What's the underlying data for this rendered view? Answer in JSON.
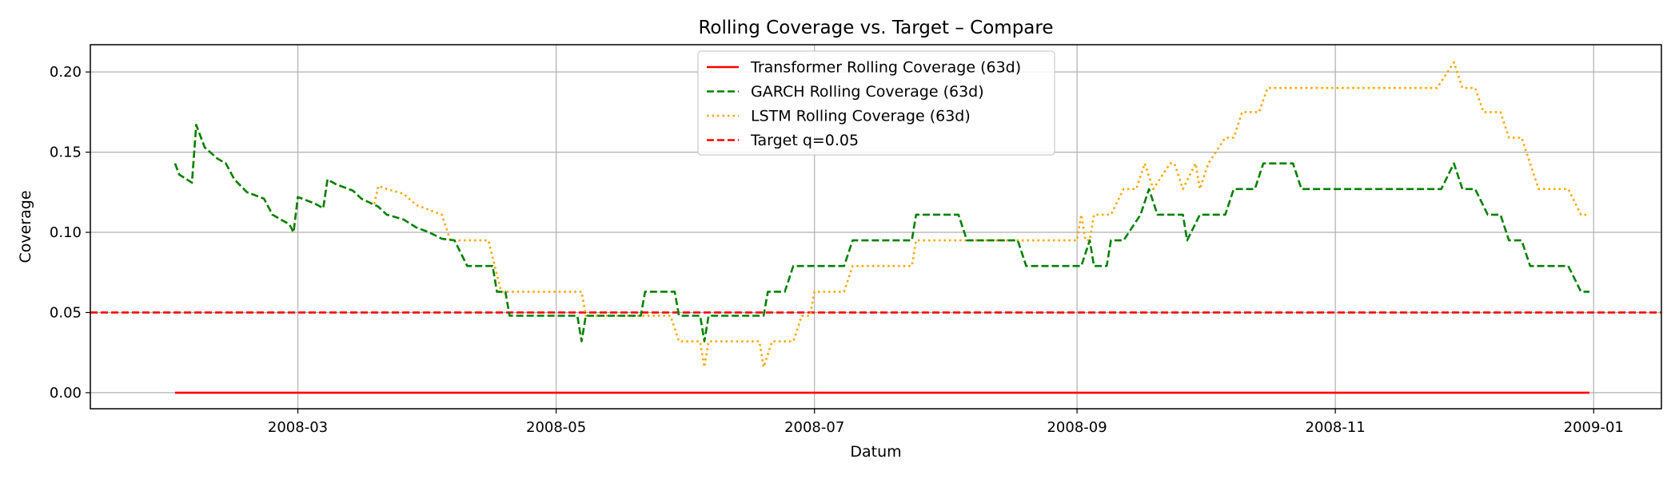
{
  "chart_data": {
    "type": "line",
    "title": "Rolling Coverage vs. Target – Compare",
    "xlabel": "Datum",
    "ylabel": "Coverage",
    "grid": true,
    "legend_position": "top-center",
    "x_ticks": [
      "2008-03",
      "2008-05",
      "2008-07",
      "2008-09",
      "2008-11",
      "2009-01"
    ],
    "y_ticks": [
      "0.00",
      "0.05",
      "0.10",
      "0.15",
      "0.20"
    ],
    "xlim": [
      "2008-01-12",
      "2009-01-17"
    ],
    "ylim": [
      -0.01,
      0.217
    ],
    "series": [
      {
        "name": "Transformer Rolling Coverage (63d)",
        "color": "#ff0000",
        "style": "solid",
        "points": [
          [
            "2008-02-01",
            0.0
          ],
          [
            "2008-12-31",
            0.0
          ]
        ]
      },
      {
        "name": "GARCH Rolling Coverage (63d)",
        "color": "#008000",
        "style": "dashed",
        "points": [
          [
            "2008-02-01",
            0.143
          ],
          [
            "2008-02-02",
            0.136
          ],
          [
            "2008-02-05",
            0.131
          ],
          [
            "2008-02-06",
            0.167
          ],
          [
            "2008-02-08",
            0.153
          ],
          [
            "2008-02-11",
            0.146
          ],
          [
            "2008-02-13",
            0.143
          ],
          [
            "2008-02-15",
            0.133
          ],
          [
            "2008-02-18",
            0.125
          ],
          [
            "2008-02-22",
            0.121
          ],
          [
            "2008-02-24",
            0.111
          ],
          [
            "2008-02-28",
            0.105
          ],
          [
            "2008-02-29",
            0.1
          ],
          [
            "2008-03-01",
            0.122
          ],
          [
            "2008-03-05",
            0.118
          ],
          [
            "2008-03-07",
            0.115
          ],
          [
            "2008-03-08",
            0.133
          ],
          [
            "2008-03-10",
            0.13
          ],
          [
            "2008-03-14",
            0.126
          ],
          [
            "2008-03-16",
            0.121
          ],
          [
            "2008-03-20",
            0.116
          ],
          [
            "2008-03-22",
            0.111
          ],
          [
            "2008-03-26",
            0.108
          ],
          [
            "2008-03-29",
            0.103
          ],
          [
            "2008-04-01",
            0.1
          ],
          [
            "2008-04-04",
            0.096
          ],
          [
            "2008-04-07",
            0.095
          ],
          [
            "2008-04-10",
            0.079
          ],
          [
            "2008-04-16",
            0.079
          ],
          [
            "2008-04-17",
            0.063
          ],
          [
            "2008-04-19",
            0.063
          ],
          [
            "2008-04-20",
            0.048
          ],
          [
            "2008-05-06",
            0.048
          ],
          [
            "2008-05-07",
            0.032
          ],
          [
            "2008-05-08",
            0.048
          ],
          [
            "2008-05-21",
            0.048
          ],
          [
            "2008-05-22",
            0.063
          ],
          [
            "2008-05-29",
            0.063
          ],
          [
            "2008-05-30",
            0.048
          ],
          [
            "2008-06-04",
            0.048
          ],
          [
            "2008-06-05",
            0.032
          ],
          [
            "2008-06-06",
            0.048
          ],
          [
            "2008-06-19",
            0.048
          ],
          [
            "2008-06-20",
            0.063
          ],
          [
            "2008-06-24",
            0.063
          ],
          [
            "2008-06-26",
            0.079
          ],
          [
            "2008-07-08",
            0.079
          ],
          [
            "2008-07-10",
            0.095
          ],
          [
            "2008-07-24",
            0.095
          ],
          [
            "2008-07-25",
            0.111
          ],
          [
            "2008-08-04",
            0.111
          ],
          [
            "2008-08-06",
            0.095
          ],
          [
            "2008-08-18",
            0.095
          ],
          [
            "2008-08-20",
            0.079
          ],
          [
            "2008-09-02",
            0.079
          ],
          [
            "2008-09-04",
            0.095
          ],
          [
            "2008-09-05",
            0.079
          ],
          [
            "2008-09-08",
            0.079
          ],
          [
            "2008-09-09",
            0.095
          ],
          [
            "2008-09-12",
            0.095
          ],
          [
            "2008-09-16",
            0.111
          ],
          [
            "2008-09-18",
            0.127
          ],
          [
            "2008-09-20",
            0.111
          ],
          [
            "2008-09-26",
            0.111
          ],
          [
            "2008-09-27",
            0.095
          ],
          [
            "2008-09-30",
            0.111
          ],
          [
            "2008-10-06",
            0.111
          ],
          [
            "2008-10-08",
            0.127
          ],
          [
            "2008-10-13",
            0.127
          ],
          [
            "2008-10-15",
            0.143
          ],
          [
            "2008-10-22",
            0.143
          ],
          [
            "2008-10-24",
            0.127
          ],
          [
            "2008-11-26",
            0.127
          ],
          [
            "2008-11-29",
            0.143
          ],
          [
            "2008-12-01",
            0.127
          ],
          [
            "2008-12-04",
            0.127
          ],
          [
            "2008-12-07",
            0.111
          ],
          [
            "2008-12-10",
            0.111
          ],
          [
            "2008-12-12",
            0.095
          ],
          [
            "2008-12-15",
            0.095
          ],
          [
            "2008-12-17",
            0.079
          ],
          [
            "2008-12-26",
            0.079
          ],
          [
            "2008-12-29",
            0.063
          ],
          [
            "2008-12-31",
            0.063
          ]
        ]
      },
      {
        "name": "LSTM Rolling Coverage (63d)",
        "color": "#ffa500",
        "style": "dotted",
        "points": [
          [
            "2008-02-01",
            0.143
          ],
          [
            "2008-02-02",
            0.136
          ],
          [
            "2008-02-05",
            0.131
          ],
          [
            "2008-02-06",
            0.167
          ],
          [
            "2008-02-08",
            0.153
          ],
          [
            "2008-02-11",
            0.146
          ],
          [
            "2008-02-13",
            0.143
          ],
          [
            "2008-02-15",
            0.133
          ],
          [
            "2008-02-18",
            0.125
          ],
          [
            "2008-02-22",
            0.121
          ],
          [
            "2008-02-24",
            0.111
          ],
          [
            "2008-02-28",
            0.105
          ],
          [
            "2008-02-29",
            0.1
          ],
          [
            "2008-03-01",
            0.122
          ],
          [
            "2008-03-05",
            0.118
          ],
          [
            "2008-03-07",
            0.115
          ],
          [
            "2008-03-08",
            0.133
          ],
          [
            "2008-03-10",
            0.13
          ],
          [
            "2008-03-14",
            0.126
          ],
          [
            "2008-03-16",
            0.121
          ],
          [
            "2008-03-19",
            0.117
          ],
          [
            "2008-03-20",
            0.129
          ],
          [
            "2008-03-22",
            0.127
          ],
          [
            "2008-03-26",
            0.124
          ],
          [
            "2008-03-29",
            0.117
          ],
          [
            "2008-04-01",
            0.114
          ],
          [
            "2008-04-04",
            0.111
          ],
          [
            "2008-04-06",
            0.095
          ],
          [
            "2008-04-15",
            0.095
          ],
          [
            "2008-04-18",
            0.063
          ],
          [
            "2008-05-07",
            0.063
          ],
          [
            "2008-05-08",
            0.048
          ],
          [
            "2008-05-28",
            0.048
          ],
          [
            "2008-05-30",
            0.032
          ],
          [
            "2008-06-04",
            0.032
          ],
          [
            "2008-06-05",
            0.016
          ],
          [
            "2008-06-06",
            0.032
          ],
          [
            "2008-06-18",
            0.032
          ],
          [
            "2008-06-19",
            0.016
          ],
          [
            "2008-06-21",
            0.032
          ],
          [
            "2008-06-26",
            0.032
          ],
          [
            "2008-06-28",
            0.048
          ],
          [
            "2008-06-30",
            0.048
          ],
          [
            "2008-07-01",
            0.063
          ],
          [
            "2008-07-08",
            0.063
          ],
          [
            "2008-07-10",
            0.079
          ],
          [
            "2008-07-24",
            0.079
          ],
          [
            "2008-07-25",
            0.095
          ],
          [
            "2008-09-01",
            0.095
          ],
          [
            "2008-09-02",
            0.111
          ],
          [
            "2008-09-03",
            0.095
          ],
          [
            "2008-09-04",
            0.095
          ],
          [
            "2008-09-05",
            0.111
          ],
          [
            "2008-09-09",
            0.111
          ],
          [
            "2008-09-12",
            0.127
          ],
          [
            "2008-09-15",
            0.127
          ],
          [
            "2008-09-17",
            0.143
          ],
          [
            "2008-09-19",
            0.127
          ],
          [
            "2008-09-23",
            0.143
          ],
          [
            "2008-09-24",
            0.143
          ],
          [
            "2008-09-26",
            0.127
          ],
          [
            "2008-09-29",
            0.143
          ],
          [
            "2008-09-30",
            0.127
          ],
          [
            "2008-10-02",
            0.143
          ],
          [
            "2008-10-06",
            0.159
          ],
          [
            "2008-10-08",
            0.159
          ],
          [
            "2008-10-10",
            0.175
          ],
          [
            "2008-10-14",
            0.175
          ],
          [
            "2008-10-16",
            0.19
          ],
          [
            "2008-11-25",
            0.19
          ],
          [
            "2008-11-29",
            0.206
          ],
          [
            "2008-12-01",
            0.19
          ],
          [
            "2008-12-04",
            0.19
          ],
          [
            "2008-12-06",
            0.175
          ],
          [
            "2008-12-10",
            0.175
          ],
          [
            "2008-12-12",
            0.159
          ],
          [
            "2008-12-15",
            0.159
          ],
          [
            "2008-12-17",
            0.143
          ],
          [
            "2008-12-19",
            0.127
          ],
          [
            "2008-12-26",
            0.127
          ],
          [
            "2008-12-29",
            0.111
          ],
          [
            "2008-12-31",
            0.111
          ]
        ]
      },
      {
        "name": "Target q=0.05",
        "color": "#ff0000",
        "style": "dashed",
        "hline": 0.05
      }
    ]
  }
}
